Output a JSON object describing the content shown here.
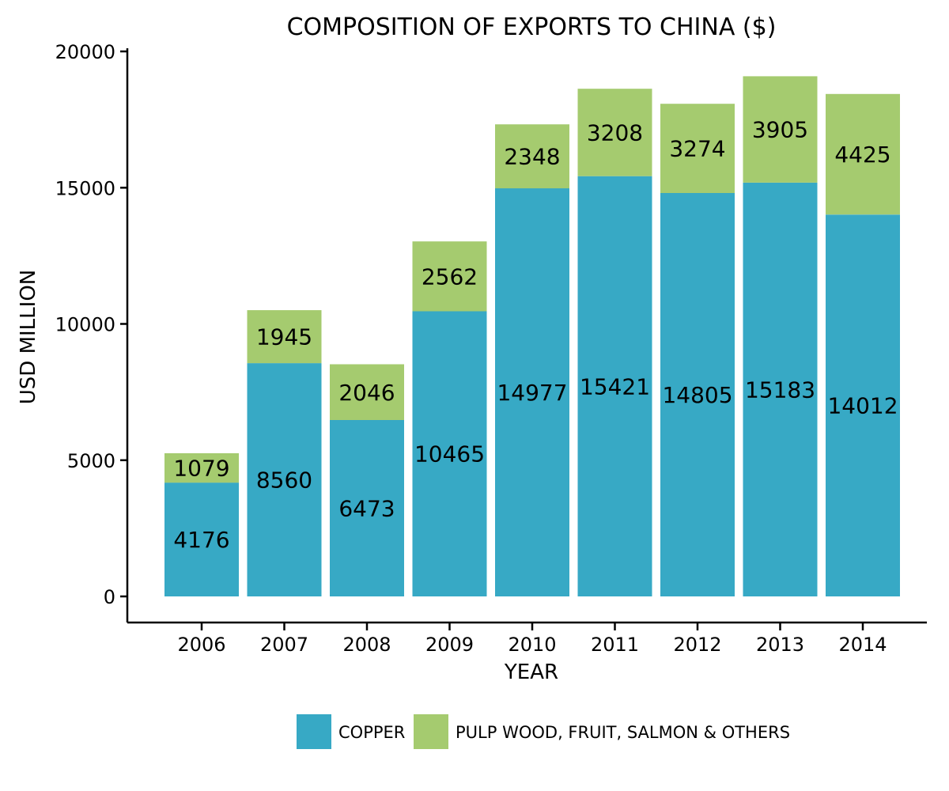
{
  "chart_data": {
    "type": "bar",
    "stacked": true,
    "title": "COMPOSITION OF EXPORTS TO CHINA ($)",
    "xlabel": "YEAR",
    "ylabel": "USD MILLION",
    "categories": [
      "2006",
      "2007",
      "2008",
      "2009",
      "2010",
      "2011",
      "2012",
      "2013",
      "2014"
    ],
    "series": [
      {
        "name": "COPPER",
        "color": "#37A9C5",
        "values": [
          4176,
          8560,
          6473,
          10465,
          14977,
          15421,
          14805,
          15183,
          14012
        ]
      },
      {
        "name": "PULP WOOD, FRUIT, SALMON & OTHERS",
        "color": "#A5CB6F",
        "values": [
          1079,
          1945,
          2046,
          2562,
          2348,
          3208,
          3274,
          3905,
          4425
        ]
      }
    ],
    "ylim": [
      0,
      20000
    ],
    "yticks": [
      0,
      5000,
      10000,
      15000,
      20000
    ],
    "grid": false,
    "legend_position": "bottom"
  }
}
